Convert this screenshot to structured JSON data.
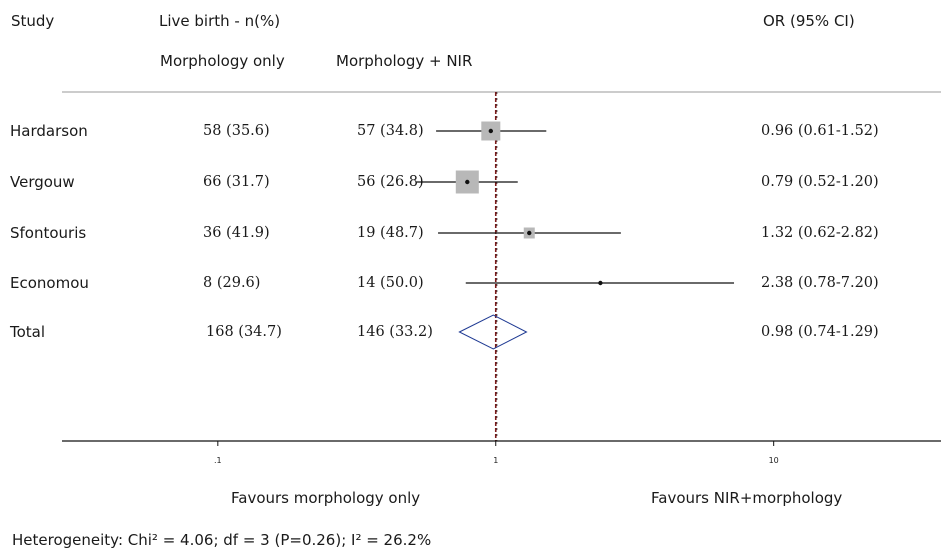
{
  "header": {
    "study_label": "Study",
    "live_birth_label": "Live birth - n(%)",
    "or_label": "OR (95% CI)",
    "col1_label": "Morphology only",
    "col2_label": "Morphology + NIR"
  },
  "chart_data": {
    "type": "forest",
    "x_scale": "log",
    "xlim": [
      0.0275,
      40
    ],
    "ticks": [
      {
        "value": 0.1,
        "label": ".1"
      },
      {
        "value": 1,
        "label": "1"
      },
      {
        "value": 10,
        "label": "10"
      }
    ],
    "reference_line": 1,
    "studies": [
      {
        "name": "Hardarson",
        "col1": "58 (35.6)",
        "col2": "57 (34.8)",
        "or": 0.96,
        "lo": 0.61,
        "hi": 1.52,
        "ci_text": "0.96 (0.61-1.52)",
        "weight": 1.0
      },
      {
        "name": "Vergouw",
        "col1": "66 (31.7)",
        "col2": "56 (26.8)",
        "or": 0.79,
        "lo": 0.52,
        "hi": 1.2,
        "ci_text": "0.79 (0.52-1.20)",
        "weight": 1.25
      },
      {
        "name": "Sfontouris",
        "col1": "36 (41.9)",
        "col2": "19 (48.7)",
        "or": 1.32,
        "lo": 0.62,
        "hi": 2.82,
        "ci_text": "1.32 (0.62-2.82)",
        "weight": 0.5
      },
      {
        "name": "Economou",
        "col1": "8 (29.6)",
        "col2": "14 (50.0)",
        "or": 2.38,
        "lo": 0.78,
        "hi": 7.2,
        "ci_text": "2.38 (0.78-7.20)",
        "weight": 0.0
      }
    ],
    "total": {
      "name": "Total",
      "col1": "168 (34.7)",
      "col2": "146 (33.2)",
      "or": 0.98,
      "lo": 0.74,
      "hi": 1.29,
      "ci_text": "0.98 (0.74-1.29)"
    },
    "favours_left": "Favours morphology only",
    "favours_right": "Favours NIR+morphology",
    "heterogeneity": "Heterogeneity: Chi² = 4.06; df = 3 (P=0.26); I² = 26.2%",
    "colors": {
      "box": "#b8b8b8",
      "line": "#111111",
      "diamond": "#1f3a93",
      "reference": "#7a1a1a"
    }
  }
}
